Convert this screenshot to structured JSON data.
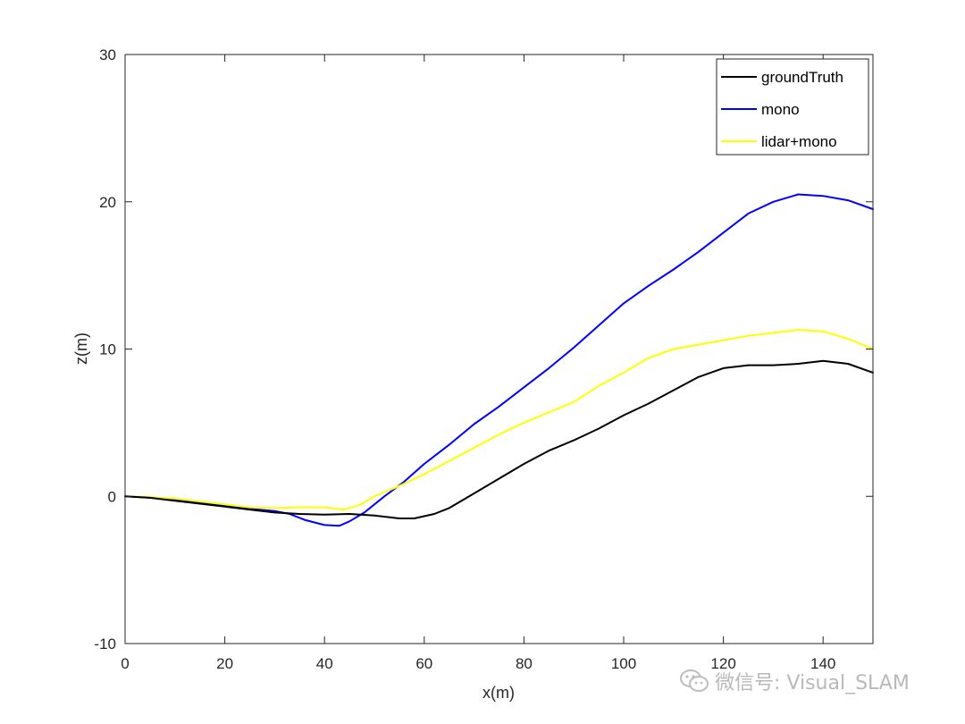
{
  "chart_data": {
    "type": "line",
    "title": "",
    "xlabel": "x(m)",
    "ylabel": "z(m)",
    "xlim": [
      0,
      150
    ],
    "ylim": [
      -10,
      30
    ],
    "xticks": [
      0,
      20,
      40,
      60,
      80,
      100,
      120,
      140
    ],
    "yticks": [
      -10,
      0,
      10,
      20,
      30
    ],
    "grid": false,
    "legend_position": "top-right",
    "series": [
      {
        "name": "groundTruth",
        "color": "#000000",
        "x": [
          0,
          5,
          10,
          15,
          20,
          25,
          30,
          35,
          40,
          45,
          50,
          55,
          58,
          62,
          65,
          70,
          75,
          80,
          85,
          90,
          95,
          100,
          105,
          110,
          115,
          120,
          125,
          130,
          135,
          140,
          145,
          150
        ],
        "y": [
          0,
          -0.1,
          -0.3,
          -0.5,
          -0.7,
          -0.9,
          -1.1,
          -1.2,
          -1.25,
          -1.2,
          -1.3,
          -1.5,
          -1.5,
          -1.2,
          -0.8,
          0.2,
          1.2,
          2.2,
          3.1,
          3.8,
          4.6,
          5.5,
          6.3,
          7.2,
          8.1,
          8.7,
          8.9,
          8.9,
          9.0,
          9.2,
          9.0,
          8.4
        ]
      },
      {
        "name": "mono",
        "color": "#0000ff",
        "x": [
          0,
          5,
          10,
          15,
          20,
          25,
          30,
          33,
          36,
          40,
          43,
          45,
          48,
          52,
          56,
          60,
          65,
          70,
          75,
          80,
          85,
          90,
          95,
          100,
          105,
          110,
          115,
          120,
          125,
          130,
          135,
          140,
          145,
          150
        ],
        "y": [
          0,
          -0.1,
          -0.25,
          -0.45,
          -0.65,
          -0.85,
          -1.0,
          -1.2,
          -1.6,
          -1.95,
          -2.0,
          -1.7,
          -1.1,
          0.0,
          1.0,
          2.2,
          3.5,
          4.9,
          6.1,
          7.4,
          8.7,
          10.1,
          11.6,
          13.1,
          14.3,
          15.4,
          16.6,
          17.9,
          19.2,
          20.0,
          20.5,
          20.4,
          20.1,
          19.5
        ]
      },
      {
        "name": "lidar+mono",
        "color": "#ffff00",
        "x": [
          0,
          5,
          10,
          15,
          20,
          25,
          30,
          35,
          40,
          44,
          47,
          50,
          55,
          60,
          65,
          70,
          75,
          80,
          85,
          90,
          95,
          100,
          105,
          110,
          115,
          120,
          125,
          130,
          135,
          140,
          145,
          150
        ],
        "y": [
          0,
          -0.05,
          -0.15,
          -0.35,
          -0.55,
          -0.75,
          -0.8,
          -0.75,
          -0.75,
          -0.9,
          -0.6,
          0.0,
          0.7,
          1.5,
          2.4,
          3.3,
          4.2,
          5.0,
          5.7,
          6.4,
          7.5,
          8.4,
          9.4,
          10.0,
          10.3,
          10.6,
          10.9,
          11.1,
          11.3,
          11.2,
          10.7,
          10.0
        ]
      }
    ]
  },
  "watermark": {
    "text": "微信号: Visual_SLAM",
    "icon": "wechat-icon"
  }
}
